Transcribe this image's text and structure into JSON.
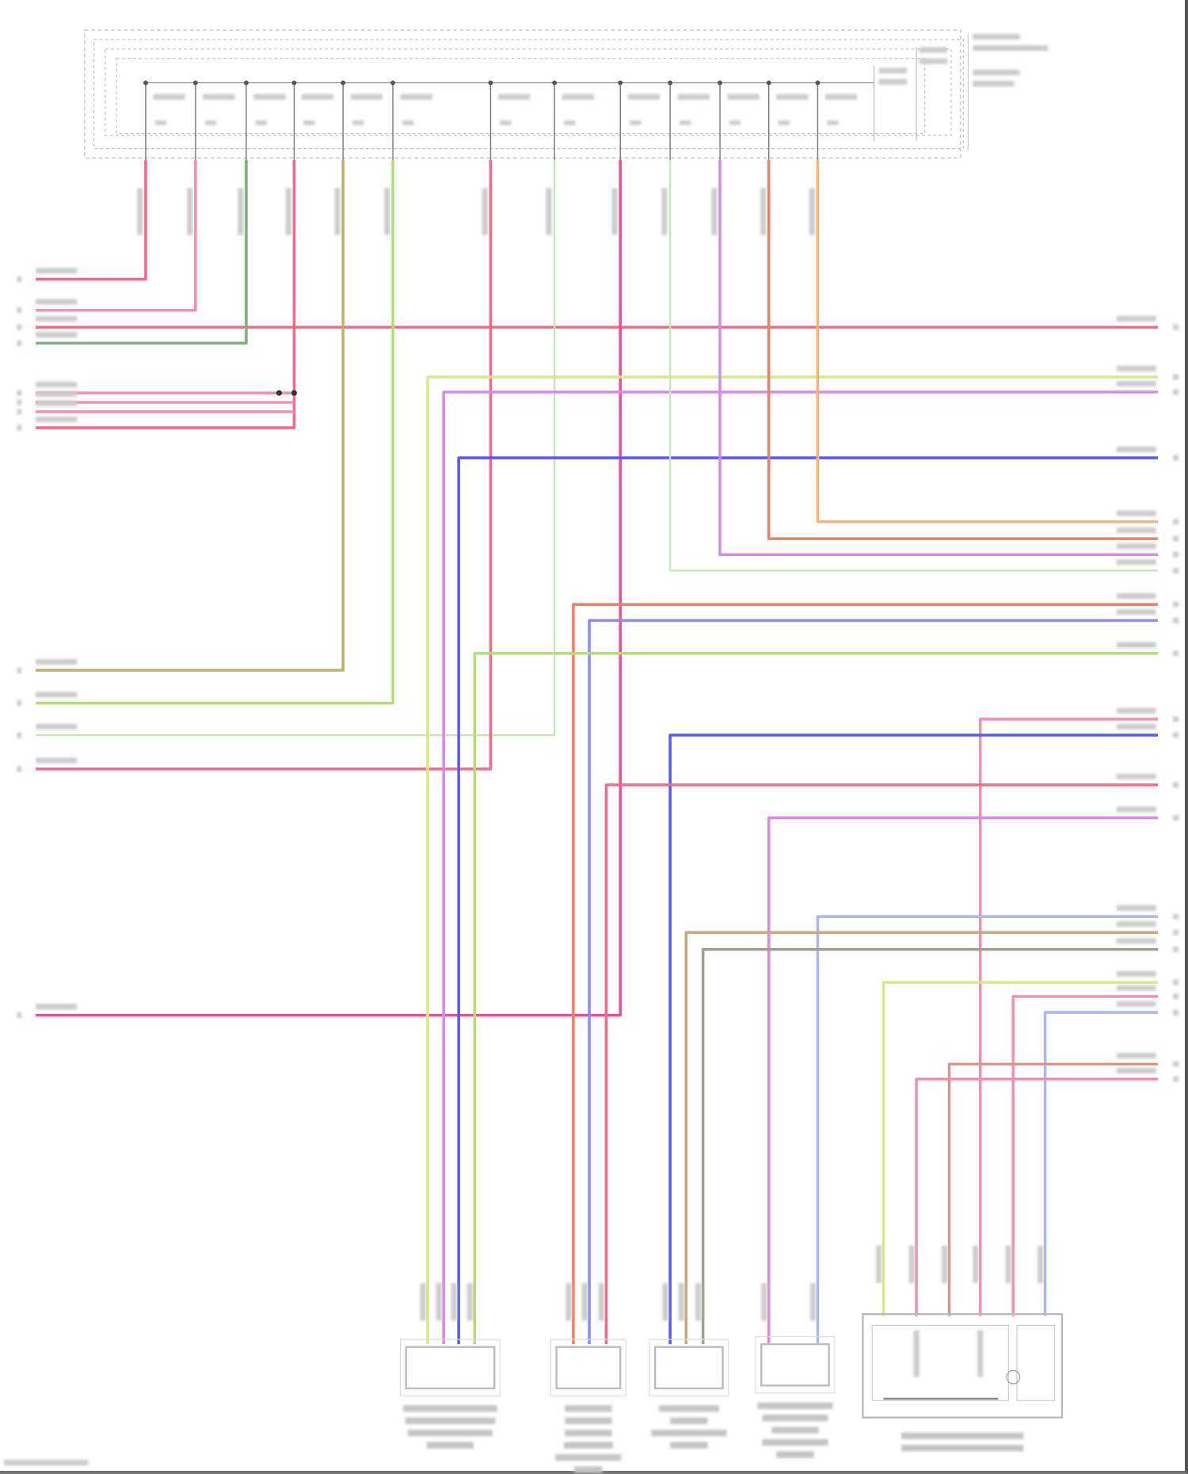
{
  "diagram": {
    "colors": {
      "red": "#f06a8a",
      "pink": "#f58fb0",
      "green": "#7cb07c",
      "olive": "#b9b46a",
      "light_green": "#b4dc78",
      "pale_green": "#c8e6b4",
      "magenta": "#f04c9a",
      "violet": "#d68ce6",
      "orange_red": "#e8826a",
      "orange": "#f5b478",
      "yellow_green": "#dce68c",
      "blue": "#5a5af0",
      "violet_blue": "#8c8cf0",
      "lavender": "#b4b4f0",
      "tan": "#c8aa78",
      "gray_olive": "#a0a08c",
      "brown_pink": "#d8968c",
      "frame": "#bdbdbd"
    }
  }
}
